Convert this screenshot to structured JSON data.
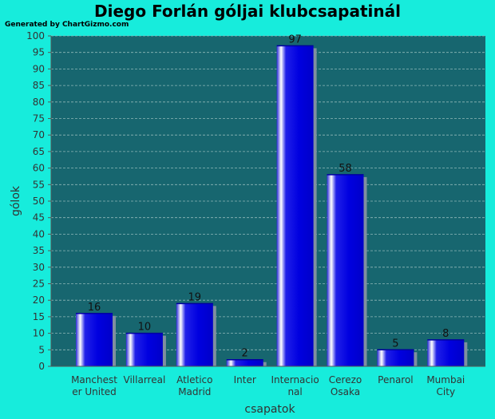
{
  "chart_data": {
    "type": "bar",
    "title": "Diego Forlán góljai klubcsapatinál",
    "credit": "Generated by ChartGizmo.com",
    "xlabel": "csapatok",
    "ylabel": "gólok",
    "ylim": [
      0,
      100
    ],
    "ytick_step": 5,
    "grid": true,
    "categories": [
      [
        "Manchest",
        "er United"
      ],
      [
        "Villarreal"
      ],
      [
        "Atletico",
        "Madrid"
      ],
      [
        "Inter"
      ],
      [
        "Internacio",
        "nal"
      ],
      [
        "Cerezo",
        "Osaka"
      ],
      [
        "Penarol"
      ],
      [
        "Mumbai",
        "City"
      ]
    ],
    "values": [
      16,
      10,
      19,
      2,
      97,
      58,
      5,
      8
    ],
    "colors": {
      "background": "#17ecdc",
      "plot_area": "#17666f",
      "bar": "#0000e0",
      "bar_highlight": "#ffffff",
      "bar_shadow": "#7f8f9f",
      "grid": "#8fb8b8"
    }
  }
}
